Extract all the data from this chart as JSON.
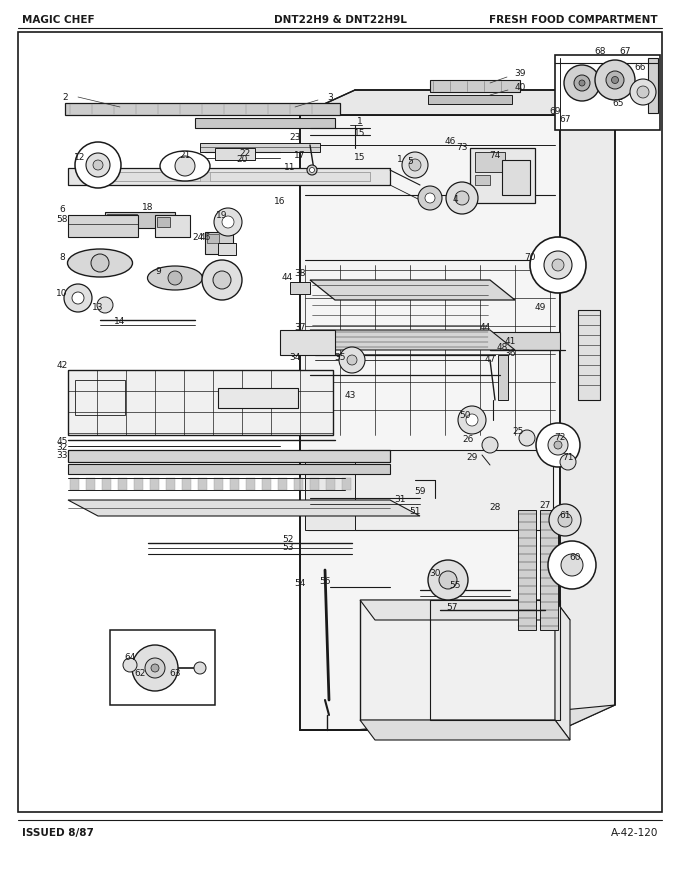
{
  "title_left": "MAGIC CHEF",
  "title_center": "DNT22H9 & DNT22H9L",
  "title_right": "FRESH FOOD COMPARTMENT",
  "footer_left": "ISSUED 8/87",
  "footer_right": "A-42-120",
  "bg_color": "#ffffff",
  "border_color": "#000000",
  "text_color": "#000000",
  "fig_width": 6.8,
  "fig_height": 8.9,
  "dpi": 100
}
